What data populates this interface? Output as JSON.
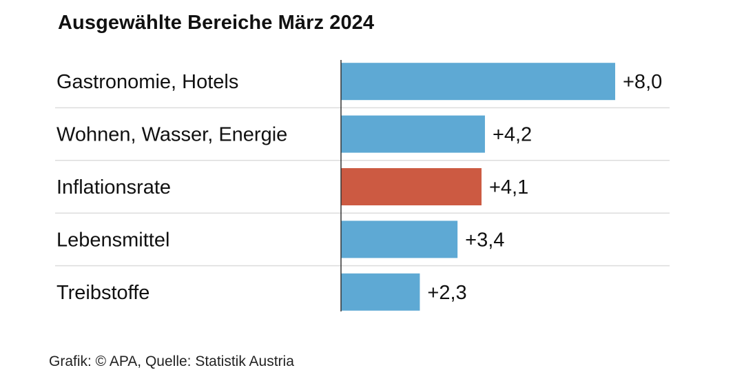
{
  "chart_data": {
    "type": "bar",
    "orientation": "horizontal",
    "title": "Ausgewählte Bereiche März 2024",
    "categories": [
      "Gastronomie, Hotels",
      "Wohnen, Wasser, Energie",
      "Inflationsrate",
      "Lebensmittel",
      "Treibstoffe"
    ],
    "values": [
      8.0,
      4.2,
      4.1,
      3.4,
      2.3
    ],
    "value_labels": [
      "+8,0",
      "+4,2",
      "+4,1",
      "+3,4",
      "+2,3"
    ],
    "highlight_category": "Inflationsrate",
    "colors": {
      "bar": "#5ea9d4",
      "highlight": "#cc5a42",
      "separator": "#dcdcdc",
      "axis": "#333333"
    },
    "xlim": [
      0,
      8.0
    ],
    "xlabel": "",
    "ylabel": ""
  },
  "footer": {
    "source": "Grafik: © APA, Quelle: Statistik Austria"
  }
}
